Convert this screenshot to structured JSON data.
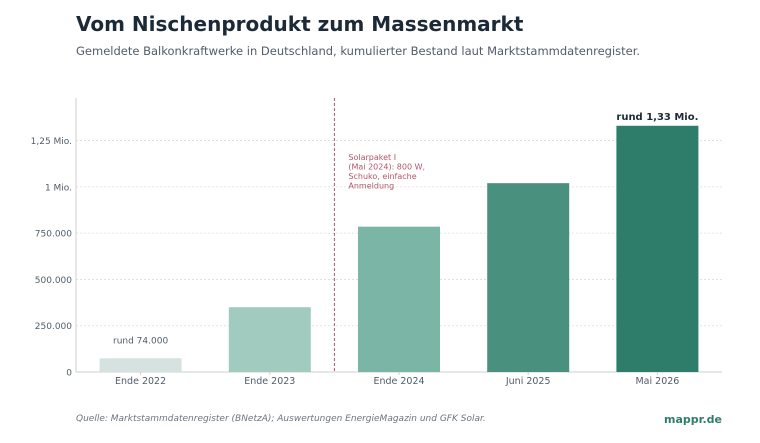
{
  "header": {
    "title": "Vom Nischenprodukt zum Massenmarkt",
    "subtitle": "Gemeldete Balkonkraftwerke in Deutschland, kumulierter Bestand laut Marktstammdatenregister."
  },
  "footer": {
    "source": "Quelle: Marktstammdatenregister (BNetzA); Auswertungen EnergieMagazin und GFK Solar.",
    "brand": "mappr.de"
  },
  "colors": {
    "bars": [
      "#d5e2df",
      "#a1cbbe",
      "#7bb5a6",
      "#4a907e",
      "#2e7d6b"
    ],
    "annotation": "#b5566b",
    "brand": "#2e7d6b"
  },
  "chart_data": {
    "type": "bar",
    "categories": [
      "Ende 2022",
      "Ende 2023",
      "Ende 2024",
      "Juni 2025",
      "Mai 2026"
    ],
    "values": [
      74000,
      350000,
      785000,
      1020000,
      1330000
    ],
    "ylim": [
      0,
      1480000
    ],
    "yticks": [
      0,
      250000,
      500000,
      750000,
      1000000,
      1250000
    ],
    "ytick_labels": [
      "0",
      "250.000",
      "500.000",
      "750.000",
      "1 Mio.",
      "1,25 Mio."
    ],
    "grid": true,
    "data_labels": [
      {
        "index": 0,
        "text": "rund 74.000"
      },
      {
        "index": 4,
        "text": "rund 1,33 Mio."
      }
    ],
    "annotation": {
      "between": [
        1,
        2
      ],
      "lines": [
        "Solarpaket I",
        "(Mai 2024): 800 W,",
        "Schuko, einfache",
        "Anmeldung"
      ]
    }
  }
}
